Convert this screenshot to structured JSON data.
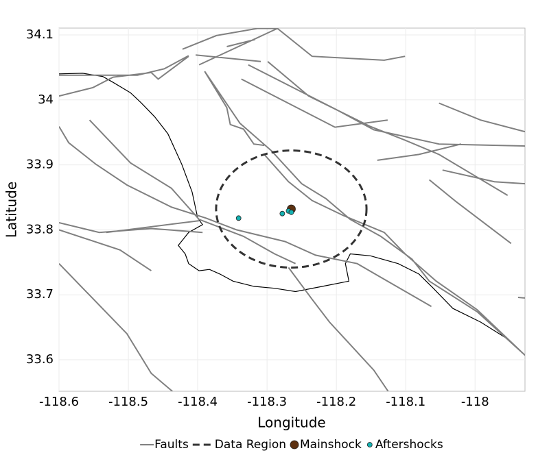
{
  "chart_data": {
    "type": "map",
    "x_label": "Longitude",
    "y_label": "Latitude",
    "xlim": [
      -118.6,
      -117.928
    ],
    "ylim": [
      33.5515,
      34.1105
    ],
    "xticks": [
      -118.6,
      -118.5,
      -118.4,
      -118.3,
      -118.2,
      -118.1,
      -118
    ],
    "yticks": [
      33.6,
      33.7,
      33.8,
      33.9,
      34,
      34.1
    ],
    "grid": true,
    "legend": "bottom",
    "series": [
      {
        "name": "Faults",
        "kind": "line",
        "color": "#808080",
        "x": [
          -118.6,
          -118.551,
          -118.522,
          -118.467,
          -118.457,
          -118.413,
          null,
          -118.6,
          -118.487,
          -118.448,
          -118.413,
          null,
          -118.422,
          -118.373,
          -118.314,
          -118.285,
          -118.235,
          -118.131,
          -118.101,
          null,
          -118.403,
          -118.309,
          null,
          -118.398,
          -118.285,
          null,
          -118.358,
          -118.317,
          null,
          -118.327,
          -118.2,
          -118.146,
          -118.052,
          -117.928,
          null,
          -118.299,
          -118.24,
          -118.151,
          -118.101,
          -118.052,
          -117.953,
          null,
          -118.337,
          -118.202,
          -118.126,
          null,
          -118.39,
          -118.358,
          -118.353,
          -118.334,
          -118.319,
          -118.304,
          null,
          -118.39,
          -118.339,
          -118.294,
          -118.25,
          -118.215,
          -118.18,
          -118.136,
          -118.091,
          -118.066,
          -117.997,
          -117.928,
          null,
          -118.304,
          -118.269,
          -118.235,
          -118.19,
          -118.131,
          -118.101,
          -118.056,
          -117.997,
          -117.928,
          null,
          -118.6,
          -118.586,
          -118.547,
          -118.502,
          -118.438,
          -118.388,
          -118.344,
          -118.274,
          -118.23,
          -118.17,
          -118.136,
          -118.063,
          null,
          -118.6,
          -118.542,
          -118.467,
          -118.393,
          null,
          -118.6,
          -118.512,
          -118.467,
          null,
          -118.532,
          -118.398,
          null,
          -118.556,
          -118.497,
          -118.438,
          -118.398,
          -118.334,
          -118.289,
          -118.259,
          null,
          -118.6,
          -118.502,
          -118.467,
          -118.436,
          null,
          -118.269,
          -118.235,
          -118.21,
          -118.146,
          -118.125,
          null,
          -118.141,
          -118.081,
          -118.02,
          null,
          -118.052,
          -117.992,
          -117.928,
          null,
          -118.047,
          -117.972,
          -117.928,
          null,
          -118.066,
          -118.027,
          -117.948,
          null,
          -117.938,
          -117.928
        ],
        "y": [
          34.006,
          34.019,
          34.035,
          34.042,
          34.032,
          34.067,
          null,
          34.038,
          34.038,
          34.048,
          34.068,
          null,
          34.078,
          34.099,
          34.11,
          34.11,
          34.067,
          34.061,
          34.067,
          null,
          34.069,
          34.059,
          null,
          34.054,
          34.11,
          null,
          34.082,
          34.093,
          null,
          34.054,
          33.985,
          33.954,
          33.932,
          33.929,
          null,
          34.059,
          34.006,
          33.959,
          33.938,
          33.916,
          33.853,
          null,
          34.032,
          33.958,
          33.969,
          null,
          34.044,
          33.988,
          33.962,
          33.955,
          33.932,
          33.93,
          null,
          34.044,
          33.964,
          33.922,
          33.871,
          33.848,
          33.816,
          33.79,
          33.755,
          33.721,
          33.674,
          33.607,
          null,
          33.916,
          33.874,
          33.845,
          33.822,
          33.796,
          33.763,
          33.721,
          33.677,
          33.607,
          null,
          33.959,
          33.934,
          33.901,
          33.869,
          33.835,
          33.818,
          33.8,
          33.782,
          33.761,
          33.748,
          33.727,
          33.682,
          null,
          33.811,
          33.796,
          33.802,
          33.796,
          null,
          33.8,
          33.769,
          33.737,
          null,
          33.796,
          33.814,
          null,
          33.969,
          33.903,
          33.864,
          33.816,
          33.79,
          33.763,
          33.748,
          null,
          33.748,
          33.64,
          33.579,
          33.551,
          null,
          33.742,
          33.693,
          33.658,
          33.584,
          33.551,
          null,
          33.907,
          33.916,
          33.932,
          null,
          33.995,
          33.969,
          33.951,
          null,
          33.892,
          33.874,
          33.871,
          null,
          33.877,
          33.843,
          33.779,
          null,
          33.696,
          33.695
        ]
      },
      {
        "name": "Data Region",
        "kind": "circle",
        "color": "#333333",
        "x": [
          -118.265
        ],
        "y": [
          33.832
        ],
        "radius_km": [
          10
        ]
      },
      {
        "name": "Mainshock",
        "kind": "point",
        "color": "#5c3111",
        "size": 6,
        "x": [
          -118.265
        ],
        "y": [
          33.832
        ]
      },
      {
        "name": "Aftershocks",
        "kind": "point",
        "color": "#15b2b2",
        "size": 3.5,
        "x": [
          -118.341,
          -118.278,
          -118.269,
          -118.265
        ],
        "y": [
          33.818,
          33.825,
          33.829,
          33.827
        ]
      }
    ],
    "outline": {
      "color": "#000000",
      "x": [
        -118.6,
        -118.566,
        -118.537,
        -118.522,
        -118.497,
        -118.482,
        -118.462,
        -118.443,
        -118.423,
        -118.408,
        -118.4,
        -118.393,
        -118.413,
        -118.428,
        -118.418,
        -118.413,
        -118.398,
        -118.383,
        -118.368,
        -118.349,
        -118.319,
        -118.289,
        -118.259,
        -118.22,
        -118.182,
        -118.187,
        -118.18,
        -118.151,
        -118.111,
        -118.081,
        -118.061,
        -118.032,
        -117.992,
        -117.953,
        -117.928
      ],
      "y": [
        34.04,
        34.041,
        34.036,
        34.027,
        34.011,
        33.996,
        33.974,
        33.948,
        33.901,
        33.858,
        33.818,
        33.808,
        33.796,
        33.776,
        33.763,
        33.748,
        33.737,
        33.739,
        33.732,
        33.721,
        33.713,
        33.71,
        33.705,
        33.713,
        33.721,
        33.748,
        33.763,
        33.76,
        33.748,
        33.732,
        33.711,
        33.679,
        33.658,
        33.632,
        33.607
      ]
    }
  }
}
